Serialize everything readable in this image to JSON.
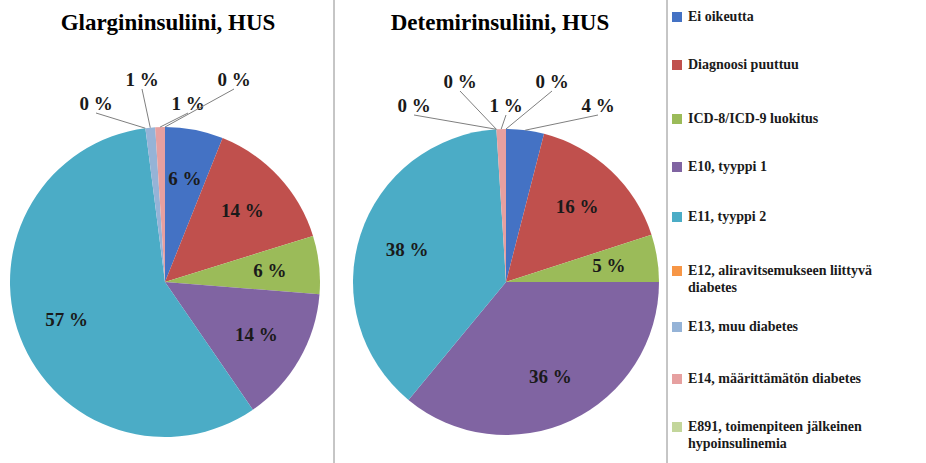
{
  "chart_data": [
    {
      "type": "pie",
      "title": "Glargininsuliini, HUS",
      "categories": [
        "Ei oikeutta",
        "Diagnoosi puuttuu",
        "ICD-8/ICD-9 luokitus",
        "E10, tyyppi 1",
        "E11, tyyppi 2",
        "E12, aliravitsemukseen liittyvä diabetes",
        "E13, muu diabetes",
        "E14, määrittämätön diabetes",
        "E891, toimenpiteen jälkeinen hypoinsulinemia"
      ],
      "values": [
        6,
        14,
        6,
        14,
        57,
        0,
        1,
        1,
        0
      ],
      "value_labels": [
        "6 %",
        "14 %",
        "6 %",
        "14 %",
        "57 %",
        "0 %",
        "1 %",
        "1 %",
        "0 %"
      ],
      "colors": [
        "#4472c4",
        "#c0504d",
        "#9bbb59",
        "#8064a2",
        "#4bacc6",
        "#f79646",
        "#95b3d7",
        "#e6a0a0",
        "#c3d69b"
      ],
      "data_labels": true
    },
    {
      "type": "pie",
      "title": "Detemirinsuliini, HUS",
      "categories": [
        "Ei oikeutta",
        "Diagnoosi puuttuu",
        "ICD-8/ICD-9 luokitus",
        "E10, tyyppi 1",
        "E11, tyyppi 2",
        "E12, aliravitsemukseen liittyvä diabetes",
        "E13, muu diabetes",
        "E14, määrittämätön diabetes",
        "E891, toimenpiteen jälkeinen hypoinsulinemia"
      ],
      "values": [
        4,
        16,
        5,
        36,
        38,
        0,
        0,
        1,
        0
      ],
      "value_labels": [
        "4 %",
        "16 %",
        "5 %",
        "36 %",
        "38 %",
        "0 %",
        "0 %",
        "1 %",
        "0 %"
      ],
      "colors": [
        "#4472c4",
        "#c0504d",
        "#9bbb59",
        "#8064a2",
        "#4bacc6",
        "#f79646",
        "#95b3d7",
        "#e6a0a0",
        "#c3d69b"
      ],
      "data_labels": true,
      "legend": "right"
    }
  ]
}
